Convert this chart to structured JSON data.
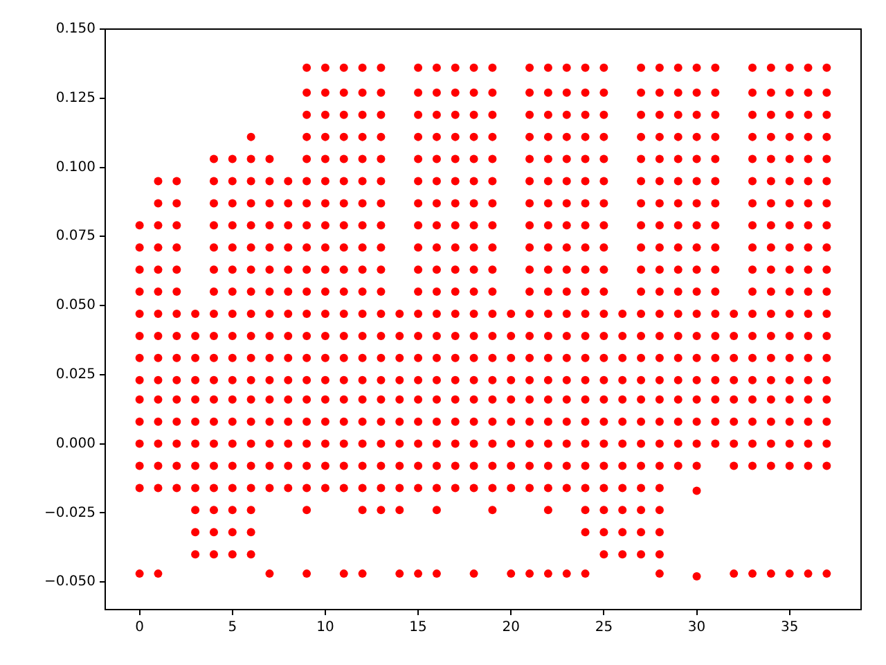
{
  "chart_data": {
    "type": "scatter",
    "xlim": [
      -1.85,
      38.85
    ],
    "xticks": [
      0,
      5,
      10,
      15,
      20,
      25,
      30,
      35
    ],
    "ylim": [
      -0.06,
      0.15
    ],
    "yticks": [
      {
        "value": -0.05,
        "label": "−0.050"
      },
      {
        "value": -0.025,
        "label": "−0.025"
      },
      {
        "value": 0,
        "label": "0.000"
      },
      {
        "value": 0.025,
        "label": "0.025"
      },
      {
        "value": 0.05,
        "label": "0.050"
      },
      {
        "value": 0.075,
        "label": "0.075"
      },
      {
        "value": 0.1,
        "label": "0.100"
      },
      {
        "value": 0.125,
        "label": "0.125"
      },
      {
        "value": 0.15,
        "label": "0.150"
      }
    ],
    "marker": "circle",
    "series": [
      {
        "color": "#ff0000",
        "x": [
          0,
          0,
          0,
          0,
          0,
          0,
          0,
          0,
          0,
          0,
          0,
          0,
          0,
          0
        ],
        "values": [
          0.079,
          0.071,
          0.063,
          0.055,
          0.047,
          0.039,
          0.031,
          0.023,
          0.016,
          0.008,
          0,
          -0.008,
          -0.016,
          -0.047
        ]
      },
      {
        "color": "#ff0000",
        "x": [
          1,
          1,
          1,
          1,
          1,
          1,
          1,
          1,
          1,
          1,
          1,
          1,
          1,
          1,
          1,
          1
        ],
        "values": [
          0.095,
          0.087,
          0.079,
          0.071,
          0.063,
          0.055,
          0.047,
          0.039,
          0.031,
          0.023,
          0.016,
          0.008,
          0,
          -0.008,
          -0.016,
          -0.047
        ]
      },
      {
        "color": "#ff0000",
        "x": [
          2,
          2,
          2,
          2,
          2,
          2,
          2,
          2,
          2,
          2,
          2,
          2,
          2,
          2,
          2
        ],
        "values": [
          0.095,
          0.087,
          0.079,
          0.071,
          0.063,
          0.055,
          0.047,
          0.039,
          0.031,
          0.023,
          0.016,
          0.008,
          0,
          -0.008,
          -0.016
        ]
      },
      {
        "color": "#ff0000",
        "x": [
          3,
          3,
          3,
          3,
          3,
          3,
          3,
          3,
          3,
          3,
          3,
          3
        ],
        "values": [
          0.047,
          0.039,
          0.031,
          0.023,
          0.016,
          0.008,
          0,
          -0.008,
          -0.016,
          -0.024,
          -0.032,
          -0.04
        ]
      },
      {
        "color": "#ff0000",
        "x": [
          4,
          4,
          4,
          4,
          4,
          4,
          4,
          4,
          4,
          4,
          4,
          4,
          4,
          4,
          4,
          4,
          4,
          4,
          4
        ],
        "values": [
          0.103,
          0.095,
          0.087,
          0.079,
          0.071,
          0.063,
          0.055,
          0.047,
          0.039,
          0.031,
          0.023,
          0.016,
          0.008,
          0,
          -0.008,
          -0.016,
          -0.024,
          -0.032,
          -0.04
        ]
      },
      {
        "color": "#ff0000",
        "x": [
          5,
          5,
          5,
          5,
          5,
          5,
          5,
          5,
          5,
          5,
          5,
          5,
          5,
          5,
          5,
          5,
          5,
          5,
          5
        ],
        "values": [
          0.103,
          0.095,
          0.087,
          0.079,
          0.071,
          0.063,
          0.055,
          0.047,
          0.039,
          0.031,
          0.023,
          0.016,
          0.008,
          0,
          -0.008,
          -0.016,
          -0.024,
          -0.032,
          -0.04
        ]
      },
      {
        "color": "#ff0000",
        "x": [
          6,
          6,
          6,
          6,
          6,
          6,
          6,
          6,
          6,
          6,
          6,
          6,
          6,
          6,
          6,
          6,
          6,
          6,
          6,
          6
        ],
        "values": [
          0.111,
          0.103,
          0.095,
          0.087,
          0.079,
          0.071,
          0.063,
          0.055,
          0.047,
          0.039,
          0.031,
          0.023,
          0.016,
          0.008,
          0,
          -0.008,
          -0.016,
          -0.024,
          -0.032,
          -0.04
        ]
      },
      {
        "color": "#ff0000",
        "x": [
          7,
          7,
          7,
          7,
          7,
          7,
          7,
          7,
          7,
          7,
          7,
          7,
          7,
          7,
          7,
          7,
          7
        ],
        "values": [
          0.103,
          0.095,
          0.087,
          0.079,
          0.071,
          0.063,
          0.055,
          0.047,
          0.039,
          0.031,
          0.023,
          0.016,
          0.008,
          0,
          -0.008,
          -0.016,
          -0.047
        ]
      },
      {
        "color": "#ff0000",
        "x": [
          8,
          8,
          8,
          8,
          8,
          8,
          8,
          8,
          8,
          8,
          8,
          8,
          8,
          8,
          8
        ],
        "values": [
          0.095,
          0.087,
          0.079,
          0.071,
          0.063,
          0.055,
          0.047,
          0.039,
          0.031,
          0.023,
          0.016,
          0.008,
          0,
          -0.008,
          -0.016
        ]
      },
      {
        "color": "#ff0000",
        "x": [
          9,
          9,
          9,
          9,
          9,
          9,
          9,
          9,
          9,
          9,
          9,
          9,
          9,
          9,
          9,
          9,
          9,
          9,
          9,
          9,
          9,
          9
        ],
        "values": [
          0.136,
          0.127,
          0.119,
          0.111,
          0.103,
          0.095,
          0.087,
          0.079,
          0.071,
          0.063,
          0.055,
          0.047,
          0.039,
          0.031,
          0.023,
          0.016,
          0.008,
          0,
          -0.008,
          -0.016,
          -0.024,
          -0.047
        ]
      },
      {
        "color": "#ff0000",
        "x": [
          10,
          10,
          10,
          10,
          10,
          10,
          10,
          10,
          10,
          10,
          10,
          10,
          10,
          10,
          10,
          10,
          10,
          10,
          10,
          10
        ],
        "values": [
          0.136,
          0.127,
          0.119,
          0.111,
          0.103,
          0.095,
          0.087,
          0.079,
          0.071,
          0.063,
          0.055,
          0.047,
          0.039,
          0.031,
          0.023,
          0.016,
          0.008,
          0,
          -0.008,
          -0.016
        ]
      },
      {
        "color": "#ff0000",
        "x": [
          11,
          11,
          11,
          11,
          11,
          11,
          11,
          11,
          11,
          11,
          11,
          11,
          11,
          11,
          11,
          11,
          11,
          11,
          11,
          11,
          11
        ],
        "values": [
          0.136,
          0.127,
          0.119,
          0.111,
          0.103,
          0.095,
          0.087,
          0.079,
          0.071,
          0.063,
          0.055,
          0.047,
          0.039,
          0.031,
          0.023,
          0.016,
          0.008,
          0,
          -0.008,
          -0.016,
          -0.047
        ]
      },
      {
        "color": "#ff0000",
        "x": [
          12,
          12,
          12,
          12,
          12,
          12,
          12,
          12,
          12,
          12,
          12,
          12,
          12,
          12,
          12,
          12,
          12,
          12,
          12,
          12,
          12,
          12
        ],
        "values": [
          0.136,
          0.127,
          0.119,
          0.111,
          0.103,
          0.095,
          0.087,
          0.079,
          0.071,
          0.063,
          0.055,
          0.047,
          0.039,
          0.031,
          0.023,
          0.016,
          0.008,
          0,
          -0.008,
          -0.016,
          -0.024,
          -0.047
        ]
      },
      {
        "color": "#ff0000",
        "x": [
          13,
          13,
          13,
          13,
          13,
          13,
          13,
          13,
          13,
          13,
          13,
          13,
          13,
          13,
          13,
          13,
          13,
          13,
          13,
          13,
          13
        ],
        "values": [
          0.136,
          0.127,
          0.119,
          0.111,
          0.103,
          0.095,
          0.087,
          0.079,
          0.071,
          0.063,
          0.055,
          0.047,
          0.039,
          0.031,
          0.023,
          0.016,
          0.008,
          0,
          -0.008,
          -0.016,
          -0.024
        ]
      },
      {
        "color": "#ff0000",
        "x": [
          14,
          14,
          14,
          14,
          14,
          14,
          14,
          14,
          14,
          14,
          14
        ],
        "values": [
          0.047,
          0.039,
          0.031,
          0.023,
          0.016,
          0.008,
          0,
          -0.008,
          -0.016,
          -0.024,
          -0.047
        ]
      },
      {
        "color": "#ff0000",
        "x": [
          15,
          15,
          15,
          15,
          15,
          15,
          15,
          15,
          15,
          15,
          15,
          15,
          15,
          15,
          15,
          15,
          15,
          15,
          15,
          15,
          15
        ],
        "values": [
          0.136,
          0.127,
          0.119,
          0.111,
          0.103,
          0.095,
          0.087,
          0.079,
          0.071,
          0.063,
          0.055,
          0.047,
          0.039,
          0.031,
          0.023,
          0.016,
          0.008,
          0,
          -0.008,
          -0.016,
          -0.047
        ]
      },
      {
        "color": "#ff0000",
        "x": [
          16,
          16,
          16,
          16,
          16,
          16,
          16,
          16,
          16,
          16,
          16,
          16,
          16,
          16,
          16,
          16,
          16,
          16,
          16,
          16,
          16,
          16
        ],
        "values": [
          0.136,
          0.127,
          0.119,
          0.111,
          0.103,
          0.095,
          0.087,
          0.079,
          0.071,
          0.063,
          0.055,
          0.047,
          0.039,
          0.031,
          0.023,
          0.016,
          0.008,
          0,
          -0.008,
          -0.016,
          -0.024,
          -0.047
        ]
      },
      {
        "color": "#ff0000",
        "x": [
          17,
          17,
          17,
          17,
          17,
          17,
          17,
          17,
          17,
          17,
          17,
          17,
          17,
          17,
          17,
          17,
          17,
          17,
          17,
          17
        ],
        "values": [
          0.136,
          0.127,
          0.119,
          0.111,
          0.103,
          0.095,
          0.087,
          0.079,
          0.071,
          0.063,
          0.055,
          0.047,
          0.039,
          0.031,
          0.023,
          0.016,
          0.008,
          0,
          -0.008,
          -0.016
        ]
      },
      {
        "color": "#ff0000",
        "x": [
          18,
          18,
          18,
          18,
          18,
          18,
          18,
          18,
          18,
          18,
          18,
          18,
          18,
          18,
          18,
          18,
          18,
          18,
          18,
          18,
          18
        ],
        "values": [
          0.136,
          0.127,
          0.119,
          0.111,
          0.103,
          0.095,
          0.087,
          0.079,
          0.071,
          0.063,
          0.055,
          0.047,
          0.039,
          0.031,
          0.023,
          0.016,
          0.008,
          0,
          -0.008,
          -0.016,
          -0.047
        ]
      },
      {
        "color": "#ff0000",
        "x": [
          19,
          19,
          19,
          19,
          19,
          19,
          19,
          19,
          19,
          19,
          19,
          19,
          19,
          19,
          19,
          19,
          19,
          19,
          19,
          19,
          19
        ],
        "values": [
          0.136,
          0.127,
          0.119,
          0.111,
          0.103,
          0.095,
          0.087,
          0.079,
          0.071,
          0.063,
          0.055,
          0.047,
          0.039,
          0.031,
          0.023,
          0.016,
          0.008,
          0,
          -0.008,
          -0.016,
          -0.024
        ]
      },
      {
        "color": "#ff0000",
        "x": [
          20,
          20,
          20,
          20,
          20,
          20,
          20,
          20,
          20,
          20
        ],
        "values": [
          0.047,
          0.039,
          0.031,
          0.023,
          0.016,
          0.008,
          0,
          -0.008,
          -0.016,
          -0.047
        ]
      },
      {
        "color": "#ff0000",
        "x": [
          21,
          21,
          21,
          21,
          21,
          21,
          21,
          21,
          21,
          21,
          21,
          21,
          21,
          21,
          21,
          21,
          21,
          21,
          21,
          21,
          21
        ],
        "values": [
          0.136,
          0.127,
          0.119,
          0.111,
          0.103,
          0.095,
          0.087,
          0.079,
          0.071,
          0.063,
          0.055,
          0.047,
          0.039,
          0.031,
          0.023,
          0.016,
          0.008,
          0,
          -0.008,
          -0.016,
          -0.047
        ]
      },
      {
        "color": "#ff0000",
        "x": [
          22,
          22,
          22,
          22,
          22,
          22,
          22,
          22,
          22,
          22,
          22,
          22,
          22,
          22,
          22,
          22,
          22,
          22,
          22,
          22,
          22,
          22
        ],
        "values": [
          0.136,
          0.127,
          0.119,
          0.111,
          0.103,
          0.095,
          0.087,
          0.079,
          0.071,
          0.063,
          0.055,
          0.047,
          0.039,
          0.031,
          0.023,
          0.016,
          0.008,
          0,
          -0.008,
          -0.016,
          -0.024,
          -0.047
        ]
      },
      {
        "color": "#ff0000",
        "x": [
          23,
          23,
          23,
          23,
          23,
          23,
          23,
          23,
          23,
          23,
          23,
          23,
          23,
          23,
          23,
          23,
          23,
          23,
          23,
          23,
          23
        ],
        "values": [
          0.136,
          0.127,
          0.119,
          0.111,
          0.103,
          0.095,
          0.087,
          0.079,
          0.071,
          0.063,
          0.055,
          0.047,
          0.039,
          0.031,
          0.023,
          0.016,
          0.008,
          0,
          -0.008,
          -0.016,
          -0.047
        ]
      },
      {
        "color": "#ff0000",
        "x": [
          24,
          24,
          24,
          24,
          24,
          24,
          24,
          24,
          24,
          24,
          24,
          24,
          24,
          24,
          24,
          24,
          24,
          24,
          24,
          24,
          24,
          24,
          24
        ],
        "values": [
          0.136,
          0.127,
          0.119,
          0.111,
          0.103,
          0.095,
          0.087,
          0.079,
          0.071,
          0.063,
          0.055,
          0.047,
          0.039,
          0.031,
          0.023,
          0.016,
          0.008,
          0,
          -0.008,
          -0.016,
          -0.024,
          -0.032,
          -0.047
        ]
      },
      {
        "color": "#ff0000",
        "x": [
          25,
          25,
          25,
          25,
          25,
          25,
          25,
          25,
          25,
          25,
          25,
          25,
          25,
          25,
          25,
          25,
          25,
          25,
          25,
          25,
          25,
          25,
          25
        ],
        "values": [
          0.136,
          0.127,
          0.119,
          0.111,
          0.103,
          0.095,
          0.087,
          0.079,
          0.071,
          0.063,
          0.055,
          0.047,
          0.039,
          0.031,
          0.023,
          0.016,
          0.008,
          0,
          -0.008,
          -0.016,
          -0.024,
          -0.032,
          -0.04
        ]
      },
      {
        "color": "#ff0000",
        "x": [
          26,
          26,
          26,
          26,
          26,
          26,
          26,
          26,
          26,
          26,
          26,
          26
        ],
        "values": [
          0.047,
          0.039,
          0.031,
          0.023,
          0.016,
          0.008,
          0,
          -0.008,
          -0.016,
          -0.024,
          -0.032,
          -0.04
        ]
      },
      {
        "color": "#ff0000",
        "x": [
          27,
          27,
          27,
          27,
          27,
          27,
          27,
          27,
          27,
          27,
          27,
          27,
          27,
          27,
          27,
          27,
          27,
          27,
          27,
          27,
          27,
          27,
          27
        ],
        "values": [
          0.136,
          0.127,
          0.119,
          0.111,
          0.103,
          0.095,
          0.087,
          0.079,
          0.071,
          0.063,
          0.055,
          0.047,
          0.039,
          0.031,
          0.023,
          0.016,
          0.008,
          0,
          -0.008,
          -0.016,
          -0.024,
          -0.032,
          -0.04
        ]
      },
      {
        "color": "#ff0000",
        "x": [
          28,
          28,
          28,
          28,
          28,
          28,
          28,
          28,
          28,
          28,
          28,
          28,
          28,
          28,
          28,
          28,
          28,
          28,
          28,
          28,
          28,
          28,
          28,
          28
        ],
        "values": [
          0.136,
          0.127,
          0.119,
          0.111,
          0.103,
          0.095,
          0.087,
          0.079,
          0.071,
          0.063,
          0.055,
          0.047,
          0.039,
          0.031,
          0.023,
          0.016,
          0.008,
          0,
          -0.008,
          -0.016,
          -0.024,
          -0.032,
          -0.04,
          -0.047
        ]
      },
      {
        "color": "#ff0000",
        "x": [
          29,
          29,
          29,
          29,
          29,
          29,
          29,
          29,
          29,
          29,
          29,
          29,
          29,
          29,
          29,
          29,
          29,
          29,
          29
        ],
        "values": [
          0.136,
          0.127,
          0.119,
          0.111,
          0.103,
          0.095,
          0.087,
          0.079,
          0.071,
          0.063,
          0.055,
          0.047,
          0.039,
          0.031,
          0.023,
          0.016,
          0.008,
          0,
          -0.008
        ]
      },
      {
        "color": "#ff0000",
        "x": [
          30,
          30,
          30,
          30,
          30,
          30,
          30,
          30,
          30,
          30,
          30,
          30,
          30,
          30,
          30,
          30,
          30,
          30,
          30,
          30,
          30
        ],
        "values": [
          0.136,
          0.127,
          0.119,
          0.111,
          0.103,
          0.095,
          0.087,
          0.079,
          0.071,
          0.063,
          0.055,
          0.047,
          0.039,
          0.031,
          0.023,
          0.016,
          0.008,
          0,
          -0.008,
          -0.017,
          -0.048
        ]
      },
      {
        "color": "#ff0000",
        "x": [
          31,
          31,
          31,
          31,
          31,
          31,
          31,
          31,
          31,
          31,
          31,
          31,
          31,
          31,
          31,
          31,
          31,
          31
        ],
        "values": [
          0.136,
          0.127,
          0.119,
          0.111,
          0.103,
          0.095,
          0.087,
          0.079,
          0.071,
          0.063,
          0.055,
          0.047,
          0.039,
          0.031,
          0.023,
          0.016,
          0.008,
          0
        ]
      },
      {
        "color": "#ff0000",
        "x": [
          32,
          32,
          32,
          32,
          32,
          32,
          32,
          32,
          32
        ],
        "values": [
          0.047,
          0.039,
          0.031,
          0.023,
          0.016,
          0.008,
          0,
          -0.008,
          -0.047
        ]
      },
      {
        "color": "#ff0000",
        "x": [
          33,
          33,
          33,
          33,
          33,
          33,
          33,
          33,
          33,
          33,
          33,
          33,
          33,
          33,
          33,
          33,
          33,
          33,
          33,
          33
        ],
        "values": [
          0.136,
          0.127,
          0.119,
          0.111,
          0.103,
          0.095,
          0.087,
          0.079,
          0.071,
          0.063,
          0.055,
          0.047,
          0.039,
          0.031,
          0.023,
          0.016,
          0.008,
          0,
          -0.008,
          -0.047
        ]
      },
      {
        "color": "#ff0000",
        "x": [
          34,
          34,
          34,
          34,
          34,
          34,
          34,
          34,
          34,
          34,
          34,
          34,
          34,
          34,
          34,
          34,
          34,
          34,
          34,
          34
        ],
        "values": [
          0.136,
          0.127,
          0.119,
          0.111,
          0.103,
          0.095,
          0.087,
          0.079,
          0.071,
          0.063,
          0.055,
          0.047,
          0.039,
          0.031,
          0.023,
          0.016,
          0.008,
          0,
          -0.008,
          -0.047
        ]
      },
      {
        "color": "#ff0000",
        "x": [
          35,
          35,
          35,
          35,
          35,
          35,
          35,
          35,
          35,
          35,
          35,
          35,
          35,
          35,
          35,
          35,
          35,
          35,
          35,
          35
        ],
        "values": [
          0.136,
          0.127,
          0.119,
          0.111,
          0.103,
          0.095,
          0.087,
          0.079,
          0.071,
          0.063,
          0.055,
          0.047,
          0.039,
          0.031,
          0.023,
          0.016,
          0.008,
          0,
          -0.008,
          -0.047
        ]
      },
      {
        "color": "#ff0000",
        "x": [
          36,
          36,
          36,
          36,
          36,
          36,
          36,
          36,
          36,
          36,
          36,
          36,
          36,
          36,
          36,
          36,
          36,
          36,
          36,
          36
        ],
        "values": [
          0.136,
          0.127,
          0.119,
          0.111,
          0.103,
          0.095,
          0.087,
          0.079,
          0.071,
          0.063,
          0.055,
          0.047,
          0.039,
          0.031,
          0.023,
          0.016,
          0.008,
          0,
          -0.008,
          -0.047
        ]
      },
      {
        "color": "#ff0000",
        "x": [
          37,
          37,
          37,
          37,
          37,
          37,
          37,
          37,
          37,
          37,
          37,
          37,
          37,
          37,
          37,
          37,
          37,
          37,
          37,
          37
        ],
        "values": [
          0.136,
          0.127,
          0.119,
          0.111,
          0.103,
          0.095,
          0.087,
          0.079,
          0.071,
          0.063,
          0.055,
          0.047,
          0.039,
          0.031,
          0.023,
          0.016,
          0.008,
          0,
          -0.008,
          -0.047
        ]
      }
    ]
  }
}
